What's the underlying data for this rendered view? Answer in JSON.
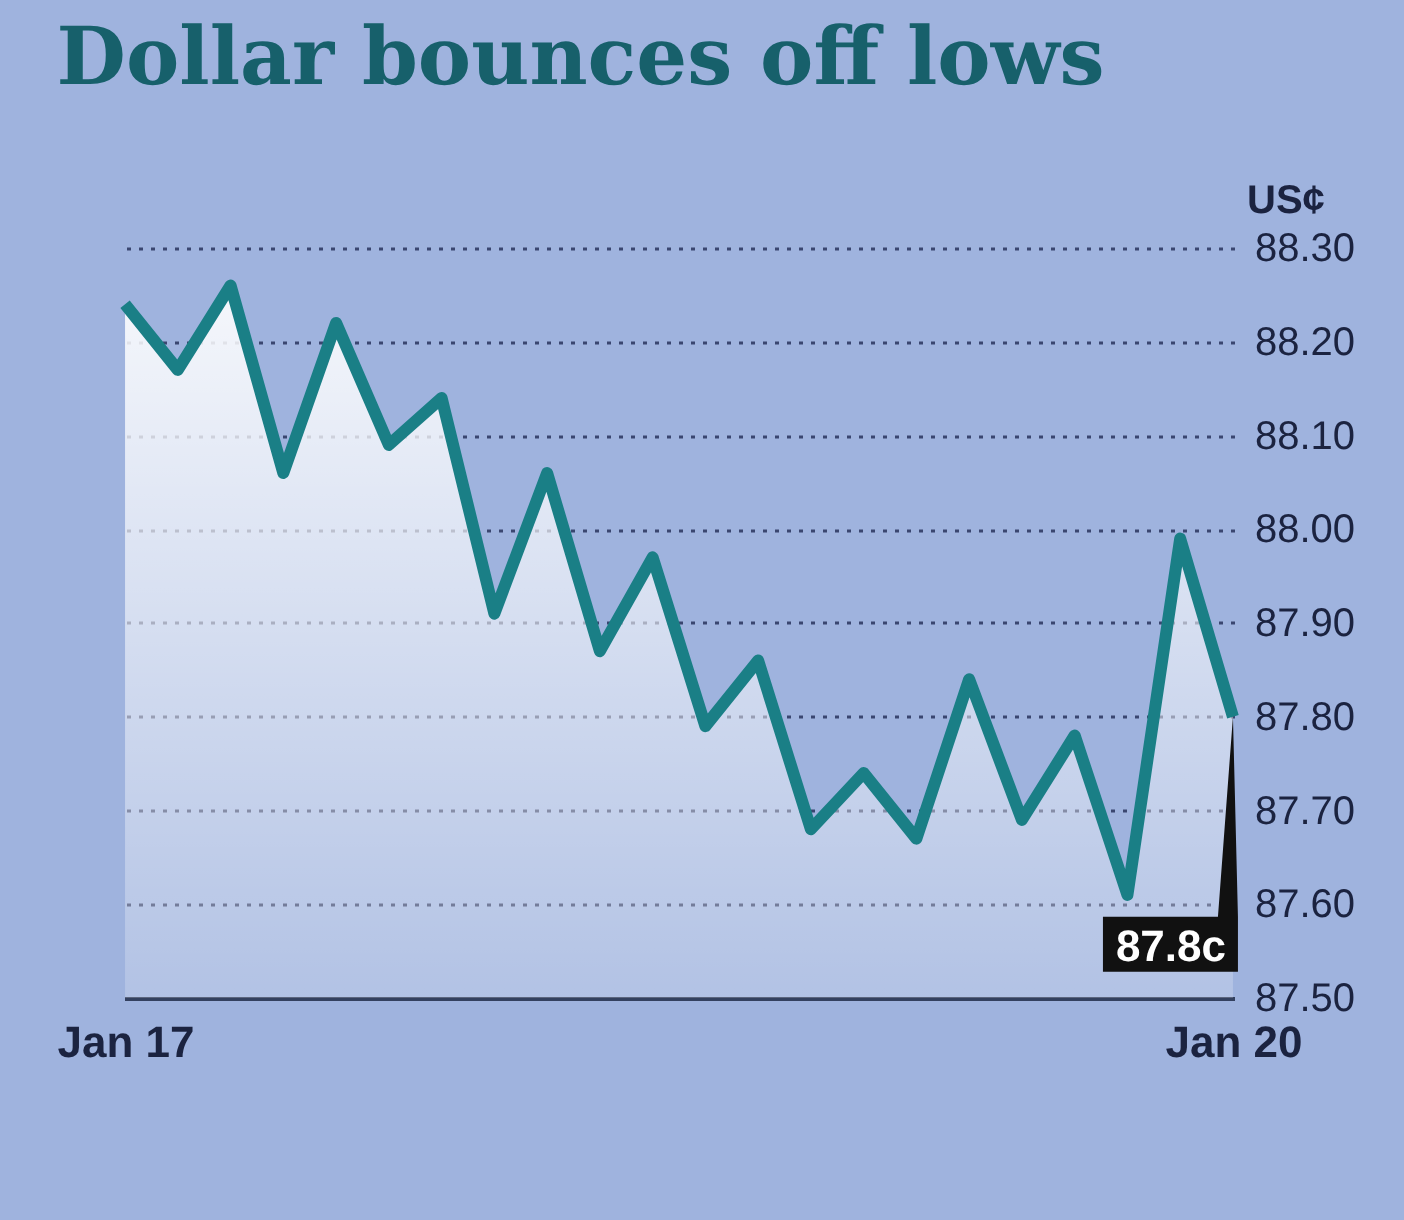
{
  "chart_data": {
    "type": "area",
    "title": "Dollar bounces off lows",
    "ylabel": "US¢",
    "categories": [
      "Jan 17",
      null,
      null,
      null,
      null,
      null,
      null,
      null,
      null,
      null,
      null,
      null,
      null,
      null,
      null,
      null,
      null,
      null,
      null,
      null,
      null,
      "Jan 20"
    ],
    "series": [
      {
        "color": "#1a7f86",
        "values": [
          88.24,
          88.17,
          88.26,
          88.06,
          88.22,
          88.09,
          88.14,
          87.91,
          88.06,
          87.87,
          87.97,
          87.79,
          87.86,
          87.68,
          87.74,
          87.67,
          87.84,
          87.69,
          87.78,
          87.61,
          87.99,
          87.8
        ]
      }
    ],
    "ylim": [
      87.5,
      88.3
    ],
    "yticks": [
      {
        "value": 88.3,
        "label": "88.30"
      },
      {
        "value": 88.2,
        "label": "88.20"
      },
      {
        "value": 88.1,
        "label": "88.10"
      },
      {
        "value": 88.0,
        "label": "88.00"
      },
      {
        "value": 87.9,
        "label": "87.90"
      },
      {
        "value": 87.8,
        "label": "87.80"
      },
      {
        "value": 87.7,
        "label": "87.70"
      },
      {
        "value": 87.6,
        "label": "87.60"
      },
      {
        "value": 87.5,
        "label": "87.50"
      }
    ],
    "annotations": [
      "87.8c"
    ],
    "grid": "y",
    "line_style": "solid"
  }
}
